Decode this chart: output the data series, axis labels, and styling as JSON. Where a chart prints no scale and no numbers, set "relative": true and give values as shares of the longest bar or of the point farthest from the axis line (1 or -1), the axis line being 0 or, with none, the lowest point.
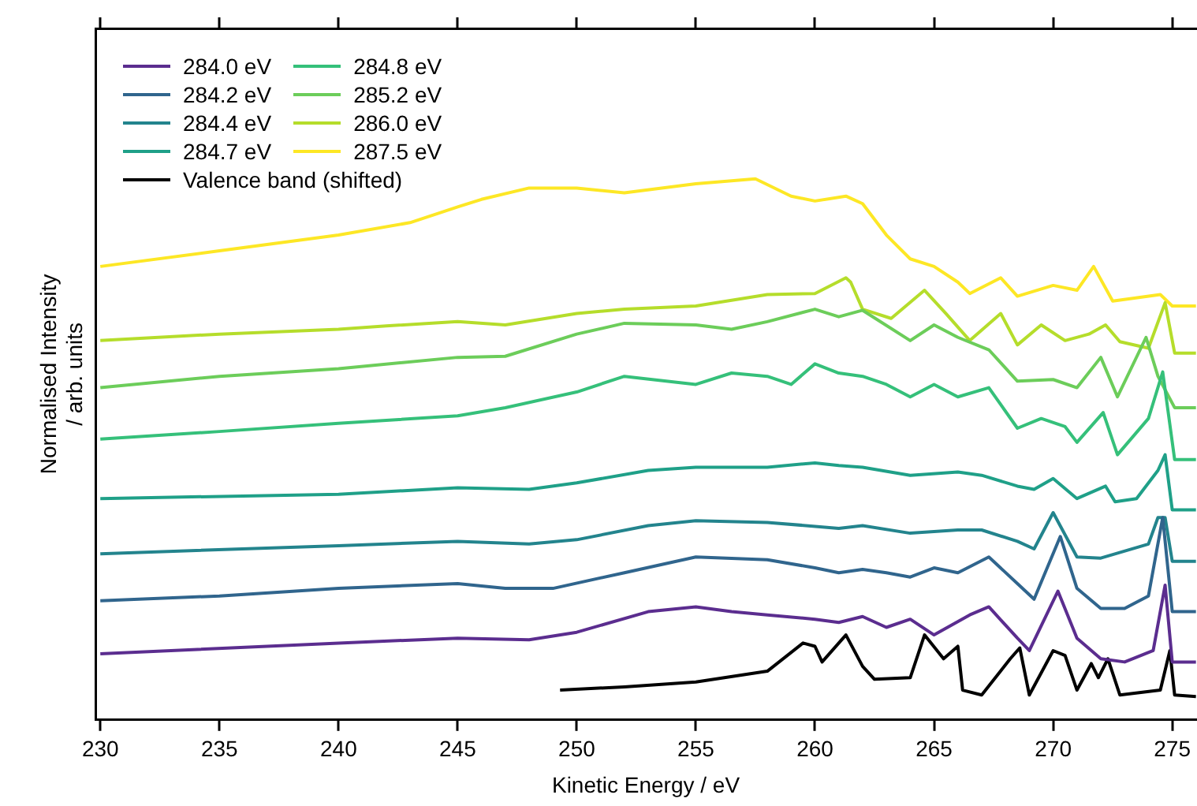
{
  "chart_data": {
    "type": "line",
    "relative": true,
    "xlabel": "Kinetic Energy / eV",
    "ylabel": "Normalised Intensity\n/ arb. units",
    "xlim": [
      229.8,
      276
    ],
    "xticks": [
      230,
      235,
      240,
      245,
      250,
      255,
      260,
      265,
      270,
      275
    ],
    "tick_labels": "x",
    "legend": "top left",
    "grid": false,
    "marker": "none",
    "line_style": "solid",
    "series": [
      {
        "name": "284.0 eV",
        "color": "#5b2d8f",
        "x": [
          230,
          240,
          245,
          248,
          250,
          253,
          255,
          256.5,
          258,
          260,
          261,
          262,
          263,
          264,
          265,
          266.5,
          267.3,
          268.5,
          269,
          270.2,
          271,
          272,
          273,
          274.2,
          274.7,
          275,
          276
        ],
        "values": [
          0.122,
          0.142,
          0.151,
          0.148,
          0.162,
          0.2,
          0.209,
          0.2,
          0.194,
          0.186,
          0.18,
          0.191,
          0.171,
          0.186,
          0.157,
          0.194,
          0.209,
          0.151,
          0.128,
          0.238,
          0.151,
          0.113,
          0.107,
          0.128,
          0.249,
          0.107,
          0.107
        ]
      },
      {
        "name": "284.2 eV",
        "color": "#30658d",
        "x": [
          230,
          235,
          240,
          245,
          247,
          249,
          252,
          255,
          258,
          260,
          261,
          262,
          263,
          264,
          265,
          266,
          267.3,
          268.5,
          269.2,
          270.3,
          271,
          272,
          273,
          274,
          274.6,
          275,
          276
        ],
        "values": [
          0.22,
          0.229,
          0.243,
          0.252,
          0.243,
          0.243,
          0.272,
          0.301,
          0.296,
          0.281,
          0.272,
          0.278,
          0.272,
          0.264,
          0.281,
          0.272,
          0.301,
          0.252,
          0.223,
          0.339,
          0.243,
          0.206,
          0.206,
          0.229,
          0.374,
          0.2,
          0.2
        ]
      },
      {
        "name": "284.4 eV",
        "color": "#23848d",
        "x": [
          230,
          240,
          245,
          248,
          250,
          253,
          255,
          258,
          261,
          262,
          264,
          266,
          267,
          268.5,
          269.2,
          270,
          271,
          272,
          274,
          274.4,
          274.7,
          275,
          276
        ],
        "values": [
          0.307,
          0.322,
          0.33,
          0.325,
          0.333,
          0.359,
          0.368,
          0.365,
          0.354,
          0.359,
          0.345,
          0.351,
          0.351,
          0.33,
          0.316,
          0.383,
          0.301,
          0.299,
          0.325,
          0.374,
          0.374,
          0.293,
          0.293
        ]
      },
      {
        "name": "284.7 eV",
        "color": "#1fa088",
        "x": [
          230,
          240,
          245,
          248,
          250,
          253,
          255,
          258,
          260,
          261,
          262,
          264,
          266,
          267,
          268.5,
          269.2,
          270,
          271,
          272.2,
          272.6,
          273.5,
          274.4,
          274.7,
          275,
          276
        ],
        "values": [
          0.409,
          0.417,
          0.429,
          0.426,
          0.438,
          0.461,
          0.467,
          0.467,
          0.475,
          0.47,
          0.467,
          0.452,
          0.458,
          0.452,
          0.432,
          0.426,
          0.446,
          0.409,
          0.432,
          0.403,
          0.409,
          0.461,
          0.49,
          0.388,
          0.388
        ]
      },
      {
        "name": "284.8 eV",
        "color": "#35c07a",
        "x": [
          230,
          235,
          240,
          245,
          247,
          250,
          252,
          255,
          256.5,
          258,
          259,
          260,
          261,
          262,
          263,
          264,
          265,
          266,
          267.3,
          268.5,
          269.5,
          270.5,
          271,
          272.1,
          272.7,
          274,
          274.6,
          275.1,
          276
        ],
        "values": [
          0.519,
          0.533,
          0.548,
          0.562,
          0.577,
          0.606,
          0.635,
          0.62,
          0.641,
          0.635,
          0.62,
          0.658,
          0.641,
          0.635,
          0.62,
          0.597,
          0.62,
          0.597,
          0.614,
          0.539,
          0.557,
          0.542,
          0.513,
          0.568,
          0.49,
          0.557,
          0.643,
          0.481,
          0.481
        ]
      },
      {
        "name": "285.2 eV",
        "color": "#6ccd5a",
        "x": [
          230,
          235,
          240,
          245,
          247,
          250,
          252,
          255,
          256.5,
          258,
          260,
          261,
          262,
          264,
          265,
          266,
          267.3,
          268.5,
          270,
          271,
          272,
          272.7,
          273.9,
          274.4,
          275.1,
          276
        ],
        "values": [
          0.614,
          0.635,
          0.649,
          0.67,
          0.672,
          0.713,
          0.733,
          0.73,
          0.722,
          0.736,
          0.759,
          0.745,
          0.757,
          0.701,
          0.73,
          0.707,
          0.684,
          0.626,
          0.629,
          0.614,
          0.67,
          0.597,
          0.707,
          0.635,
          0.577,
          0.577
        ]
      },
      {
        "name": "286.0 eV",
        "color": "#b5dd2b",
        "x": [
          230,
          235,
          240,
          242,
          245,
          247,
          250,
          252,
          255,
          258,
          260,
          261.3,
          261.5,
          262,
          263.2,
          264.6,
          265.5,
          266.5,
          267.8,
          268.5,
          269.5,
          270.5,
          271.5,
          272.2,
          272.8,
          274,
          274.7,
          275.1,
          276
        ],
        "values": [
          0.701,
          0.713,
          0.722,
          0.728,
          0.736,
          0.73,
          0.751,
          0.759,
          0.765,
          0.786,
          0.788,
          0.817,
          0.809,
          0.759,
          0.742,
          0.794,
          0.751,
          0.701,
          0.751,
          0.693,
          0.73,
          0.701,
          0.713,
          0.73,
          0.699,
          0.687,
          0.771,
          0.678,
          0.678
        ]
      },
      {
        "name": "287.5 eV",
        "color": "#fde725",
        "x": [
          230,
          235,
          240,
          243,
          245,
          246,
          248,
          250,
          252,
          255,
          257.5,
          259,
          260,
          261.3,
          262,
          263,
          264,
          265,
          266,
          266.5,
          267.8,
          268.5,
          270,
          271,
          271.7,
          272.5,
          274.5,
          275,
          276
        ],
        "values": [
          0.838,
          0.867,
          0.896,
          0.919,
          0.948,
          0.962,
          0.983,
          0.983,
          0.974,
          0.991,
          1,
          0.968,
          0.959,
          0.968,
          0.954,
          0.896,
          0.852,
          0.838,
          0.809,
          0.788,
          0.817,
          0.783,
          0.803,
          0.794,
          0.838,
          0.774,
          0.786,
          0.765,
          0.765
        ]
      },
      {
        "name": "Valence band (shifted)",
        "color": "#000000",
        "x": [
          249.3,
          252,
          255,
          258,
          259.5,
          260,
          260.3,
          261.3,
          262,
          262.5,
          264,
          264.6,
          265.4,
          266,
          266.2,
          267,
          268.2,
          268.6,
          269,
          270,
          270.5,
          271,
          271.6,
          271.9,
          272.3,
          272.8,
          274.5,
          274.9,
          275.1,
          276
        ],
        "values": [
          0.055,
          0.061,
          0.07,
          0.09,
          0.142,
          0.136,
          0.107,
          0.157,
          0.099,
          0.075,
          0.078,
          0.157,
          0.113,
          0.136,
          0.055,
          0.046,
          0.113,
          0.133,
          0.046,
          0.128,
          0.119,
          0.055,
          0.104,
          0.078,
          0.113,
          0.046,
          0.055,
          0.128,
          0.046,
          0.043
        ]
      }
    ]
  }
}
